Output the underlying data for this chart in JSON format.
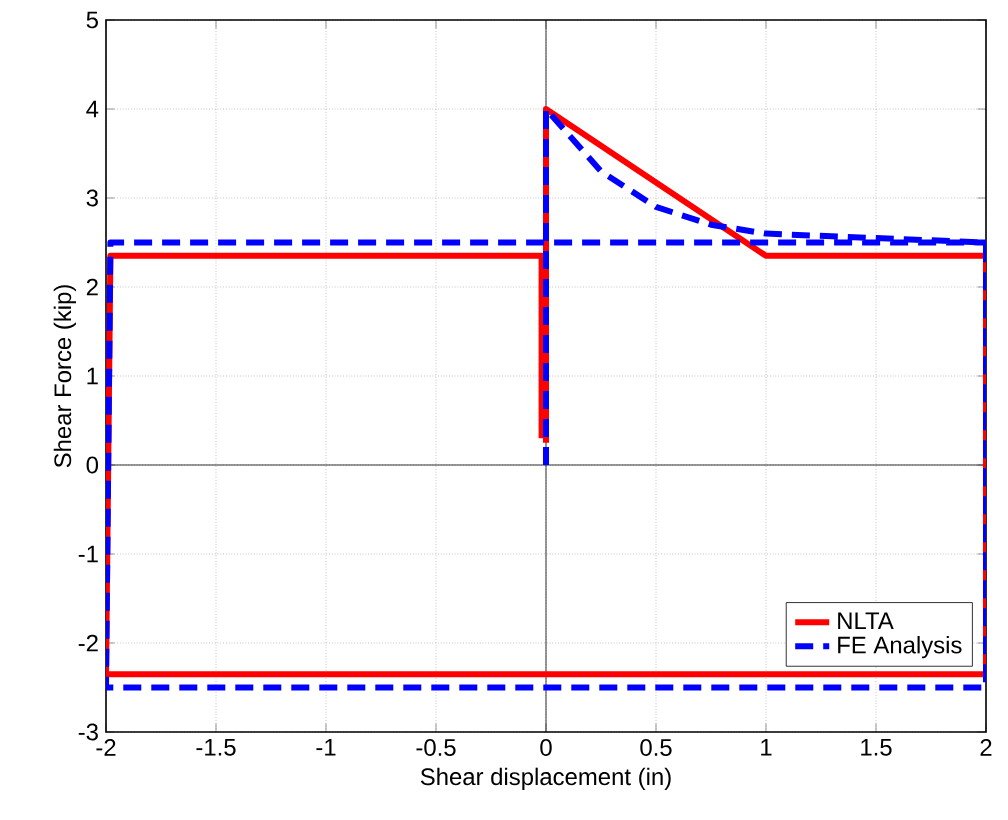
{
  "chart_data": {
    "type": "line",
    "xlabel": "Shear displacement (in)",
    "ylabel": "Shear Force (kip)",
    "xlim": [
      -2,
      2
    ],
    "ylim": [
      -3,
      5
    ],
    "xticks": [
      -2,
      -1.5,
      -1,
      -0.5,
      0,
      0.5,
      1,
      1.5,
      2
    ],
    "yticks": [
      -3,
      -2,
      -1,
      0,
      1,
      2,
      3,
      4,
      5
    ],
    "grid": true,
    "legend": "bottom right",
    "marker": "none",
    "series": [
      {
        "name": "NLTA",
        "color": "#ff0000",
        "line_style": "solid",
        "x": [
          0,
          0,
          1,
          2,
          2,
          -2,
          -1.98,
          -0.02,
          -0.02
        ],
        "values": [
          0.25,
          4,
          2.35,
          2.35,
          -2.35,
          -2.35,
          2.35,
          2.35,
          0.3
        ]
      },
      {
        "name": "FE Analysis",
        "color": "#0000ff",
        "line_style": "dashed",
        "x": [
          0,
          0,
          0.25,
          0.5,
          0.75,
          1,
          1.5,
          2,
          2,
          -2,
          -1.98,
          2
        ],
        "values": [
          0,
          4,
          3.3,
          2.9,
          2.7,
          2.6,
          2.55,
          2.5,
          -2.5,
          -2.5,
          2.5,
          2.5
        ]
      }
    ]
  }
}
